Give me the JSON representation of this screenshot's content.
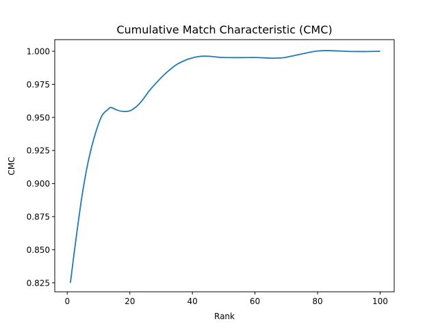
{
  "chart_data": {
    "type": "line",
    "title": "Cumulative Match Characteristic (CMC)",
    "xlabel": "Rank",
    "ylabel": "CMC",
    "xlim": [
      -4,
      104.5
    ],
    "ylim": [
      0.8182,
      1.0088
    ],
    "xticks": [
      0,
      20,
      40,
      60,
      80,
      100
    ],
    "xtick_labels": [
      "0",
      "20",
      "40",
      "60",
      "80",
      "100"
    ],
    "yticks": [
      0.825,
      0.85,
      0.875,
      0.9,
      0.925,
      0.95,
      0.975,
      1.0
    ],
    "ytick_labels": [
      "0.825",
      "0.850",
      "0.875",
      "0.900",
      "0.925",
      "0.950",
      "0.975",
      "1.000"
    ],
    "grid": false,
    "series": [
      {
        "color": "#1f77b4",
        "x": [
          1,
          3,
          5,
          7,
          9,
          11,
          13,
          14,
          16,
          18,
          20,
          22,
          24,
          26,
          28,
          30,
          32,
          35,
          38,
          40,
          42,
          44,
          46,
          48,
          50,
          55,
          60,
          65,
          68,
          70,
          75,
          78,
          80,
          83,
          86,
          90,
          95,
          100
        ],
        "y": [
          0.825,
          0.862,
          0.895,
          0.92,
          0.938,
          0.951,
          0.956,
          0.9575,
          0.9555,
          0.9545,
          0.955,
          0.958,
          0.963,
          0.9695,
          0.975,
          0.98,
          0.9845,
          0.99,
          0.9935,
          0.995,
          0.996,
          0.9963,
          0.9961,
          0.9956,
          0.9953,
          0.9952,
          0.9953,
          0.9948,
          0.9949,
          0.9955,
          0.998,
          0.9995,
          1.0002,
          1.0005,
          1.0003,
          0.9999,
          0.9998,
          1.0
        ]
      }
    ]
  }
}
